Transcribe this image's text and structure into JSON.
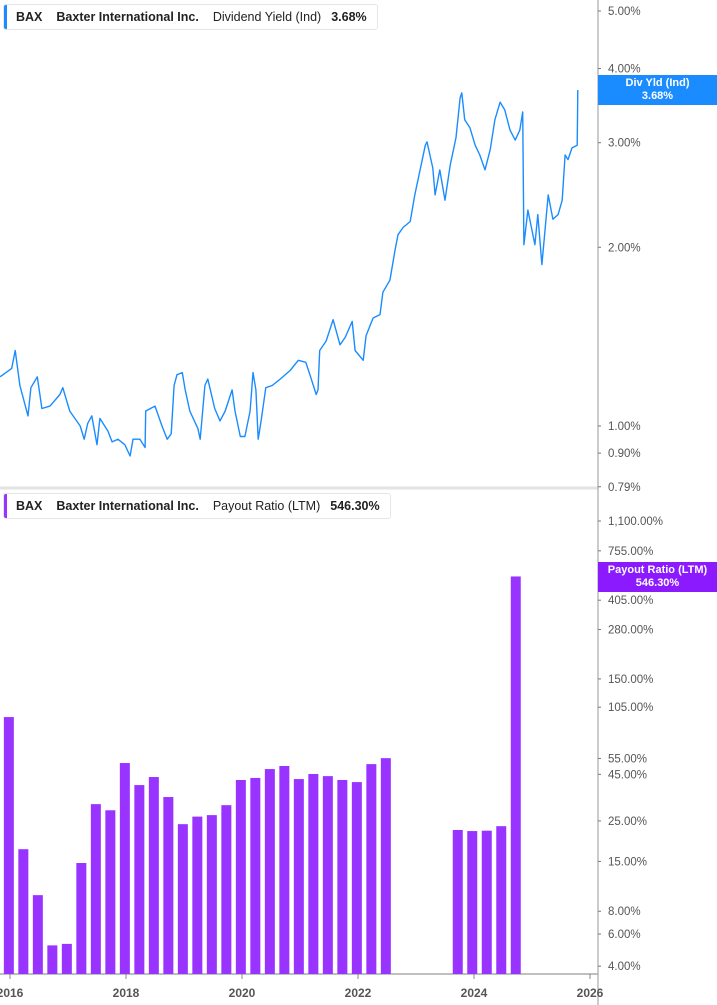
{
  "colors": {
    "yield": "#1a8cff",
    "payout": "#9933ff",
    "payout_badge": "#8c1aff"
  },
  "top_legend": {
    "ticker": "BAX",
    "company": "Baxter International Inc.",
    "metric": "Dividend Yield (Ind)",
    "value": "3.68%"
  },
  "bottom_legend": {
    "ticker": "BAX",
    "company": "Baxter International Inc.",
    "metric": "Payout Ratio (LTM)",
    "value": "546.30%"
  },
  "top_badge": {
    "label": "Div Yld (Ind)",
    "value": "3.68%"
  },
  "bottom_badge": {
    "label": "Payout Ratio (LTM)",
    "value": "546.30%"
  },
  "chart_data": [
    {
      "type": "line",
      "title": "Dividend Yield (Ind)",
      "yscale": "log",
      "ylim": [
        0.79,
        5.2
      ],
      "xlim": [
        2015.83,
        2026.2
      ],
      "y_ticks": [
        {
          "v": 5.0,
          "label": "5.00%"
        },
        {
          "v": 4.0,
          "label": "4.00%"
        },
        {
          "v": 3.0,
          "label": "3.00%"
        },
        {
          "v": 2.0,
          "label": "2.00%"
        },
        {
          "v": 1.0,
          "label": "1.00%"
        },
        {
          "v": 0.9,
          "label": "0.90%"
        },
        {
          "v": 0.79,
          "label": "0.79%"
        }
      ],
      "series": [
        {
          "name": "Dividend Yield (Ind)",
          "points": [
            [
              2015.83,
              1.21
            ],
            [
              2016.03,
              1.25
            ],
            [
              2016.09,
              1.34
            ],
            [
              2016.17,
              1.17
            ],
            [
              2016.31,
              1.04
            ],
            [
              2016.36,
              1.16
            ],
            [
              2016.47,
              1.21
            ],
            [
              2016.55,
              1.07
            ],
            [
              2016.69,
              1.08
            ],
            [
              2016.86,
              1.13
            ],
            [
              2016.91,
              1.16
            ],
            [
              2017.03,
              1.06
            ],
            [
              2017.21,
              1.0
            ],
            [
              2017.28,
              0.95
            ],
            [
              2017.34,
              1.01
            ],
            [
              2017.41,
              1.04
            ],
            [
              2017.5,
              0.93
            ],
            [
              2017.55,
              1.03
            ],
            [
              2017.69,
              0.98
            ],
            [
              2017.76,
              0.94
            ],
            [
              2017.86,
              0.95
            ],
            [
              2017.98,
              0.93
            ],
            [
              2018.07,
              0.89
            ],
            [
              2018.12,
              0.95
            ],
            [
              2018.24,
              0.95
            ],
            [
              2018.33,
              0.92
            ],
            [
              2018.34,
              1.06
            ],
            [
              2018.5,
              1.08
            ],
            [
              2018.62,
              1.0
            ],
            [
              2018.71,
              0.95
            ],
            [
              2018.78,
              0.97
            ],
            [
              2018.83,
              1.17
            ],
            [
              2018.88,
              1.22
            ],
            [
              2018.97,
              1.23
            ],
            [
              2019.02,
              1.15
            ],
            [
              2019.1,
              1.06
            ],
            [
              2019.24,
              0.99
            ],
            [
              2019.28,
              0.95
            ],
            [
              2019.36,
              1.17
            ],
            [
              2019.41,
              1.2
            ],
            [
              2019.53,
              1.07
            ],
            [
              2019.62,
              1.02
            ],
            [
              2019.71,
              1.06
            ],
            [
              2019.83,
              1.15
            ],
            [
              2019.88,
              1.06
            ],
            [
              2019.97,
              0.96
            ],
            [
              2020.05,
              0.96
            ],
            [
              2020.14,
              1.06
            ],
            [
              2020.19,
              1.23
            ],
            [
              2020.24,
              1.15
            ],
            [
              2020.28,
              0.95
            ],
            [
              2020.33,
              1.02
            ],
            [
              2020.41,
              1.16
            ],
            [
              2020.52,
              1.17
            ],
            [
              2020.66,
              1.2
            ],
            [
              2020.83,
              1.24
            ],
            [
              2020.97,
              1.29
            ],
            [
              2021.1,
              1.28
            ],
            [
              2021.17,
              1.22
            ],
            [
              2021.28,
              1.13
            ],
            [
              2021.31,
              1.15
            ],
            [
              2021.34,
              1.34
            ],
            [
              2021.45,
              1.39
            ],
            [
              2021.57,
              1.51
            ],
            [
              2021.69,
              1.37
            ],
            [
              2021.78,
              1.41
            ],
            [
              2021.9,
              1.5
            ],
            [
              2021.95,
              1.34
            ],
            [
              2022.09,
              1.29
            ],
            [
              2022.14,
              1.42
            ],
            [
              2022.26,
              1.52
            ],
            [
              2022.38,
              1.54
            ],
            [
              2022.43,
              1.68
            ],
            [
              2022.55,
              1.76
            ],
            [
              2022.64,
              1.98
            ],
            [
              2022.69,
              2.1
            ],
            [
              2022.78,
              2.16
            ],
            [
              2022.9,
              2.21
            ],
            [
              2022.98,
              2.45
            ],
            [
              2023.07,
              2.7
            ],
            [
              2023.16,
              2.97
            ],
            [
              2023.19,
              3.01
            ],
            [
              2023.29,
              2.72
            ],
            [
              2023.33,
              2.45
            ],
            [
              2023.41,
              2.7
            ],
            [
              2023.5,
              2.4
            ],
            [
              2023.59,
              2.75
            ],
            [
              2023.69,
              3.06
            ],
            [
              2023.76,
              3.57
            ],
            [
              2023.79,
              3.64
            ],
            [
              2023.84,
              3.28
            ],
            [
              2023.93,
              3.18
            ],
            [
              2024.02,
              2.97
            ],
            [
              2024.1,
              2.86
            ],
            [
              2024.19,
              2.7
            ],
            [
              2024.28,
              2.92
            ],
            [
              2024.36,
              3.28
            ],
            [
              2024.45,
              3.51
            ],
            [
              2024.53,
              3.41
            ],
            [
              2024.62,
              3.15
            ],
            [
              2024.71,
              3.03
            ],
            [
              2024.79,
              3.15
            ],
            [
              2024.84,
              3.38
            ],
            [
              2024.86,
              2.02
            ],
            [
              2024.93,
              2.31
            ],
            [
              2025.05,
              2.02
            ],
            [
              2025.1,
              2.27
            ],
            [
              2025.17,
              1.87
            ],
            [
              2025.24,
              2.22
            ],
            [
              2025.28,
              2.45
            ],
            [
              2025.36,
              2.23
            ],
            [
              2025.45,
              2.27
            ],
            [
              2025.52,
              2.4
            ],
            [
              2025.57,
              2.86
            ],
            [
              2025.62,
              2.81
            ],
            [
              2025.69,
              2.94
            ],
            [
              2025.78,
              2.97
            ],
            [
              2025.79,
              3.68
            ]
          ]
        }
      ]
    },
    {
      "type": "bar",
      "title": "Payout Ratio (LTM)",
      "yscale": "log",
      "ylim": [
        3.6,
        1100
      ],
      "xlim": [
        2015.83,
        2026.2
      ],
      "x_ticks": [
        "2016",
        "2018",
        "2020",
        "2022",
        "2024",
        "2026"
      ],
      "y_ticks": [
        {
          "v": 1100,
          "label": "1,100.00%"
        },
        {
          "v": 755,
          "label": "755.00%"
        },
        {
          "v": 405,
          "label": "405.00%"
        },
        {
          "v": 280,
          "label": "280.00%"
        },
        {
          "v": 150,
          "label": "150.00%"
        },
        {
          "v": 105,
          "label": "105.00%"
        },
        {
          "v": 55,
          "label": "55.00%"
        },
        {
          "v": 45,
          "label": "45.00%"
        },
        {
          "v": 25,
          "label": "25.00%"
        },
        {
          "v": 15,
          "label": "15.00%"
        },
        {
          "v": 8,
          "label": "8.00%"
        },
        {
          "v": 6,
          "label": "6.00%"
        },
        {
          "v": 4,
          "label": "4.00%"
        }
      ],
      "series": [
        {
          "name": "Payout Ratio (LTM)",
          "points": [
            [
              2015.98,
              92.7
            ],
            [
              2016.23,
              17.5
            ],
            [
              2016.48,
              9.8
            ],
            [
              2016.73,
              5.2
            ],
            [
              2016.98,
              5.3
            ],
            [
              2017.23,
              14.7
            ],
            [
              2017.48,
              30.9
            ],
            [
              2017.73,
              28.6
            ],
            [
              2017.98,
              51.9
            ],
            [
              2018.23,
              39.3
            ],
            [
              2018.48,
              43.5
            ],
            [
              2018.73,
              33.8
            ],
            [
              2018.98,
              24.0
            ],
            [
              2019.23,
              26.4
            ],
            [
              2019.48,
              26.9
            ],
            [
              2019.73,
              30.5
            ],
            [
              2019.98,
              41.9
            ],
            [
              2020.23,
              43.0
            ],
            [
              2020.48,
              48.1
            ],
            [
              2020.73,
              50.0
            ],
            [
              2020.98,
              42.4
            ],
            [
              2021.23,
              45.2
            ],
            [
              2021.48,
              44.0
            ],
            [
              2021.73,
              41.9
            ],
            [
              2021.98,
              40.8
            ],
            [
              2022.23,
              51.2
            ],
            [
              2022.48,
              55.2
            ],
            [
              2023.72,
              22.3
            ],
            [
              2023.97,
              22.0
            ],
            [
              2024.22,
              22.1
            ],
            [
              2024.47,
              23.4
            ],
            [
              2024.72,
              546.3
            ]
          ]
        }
      ]
    }
  ]
}
